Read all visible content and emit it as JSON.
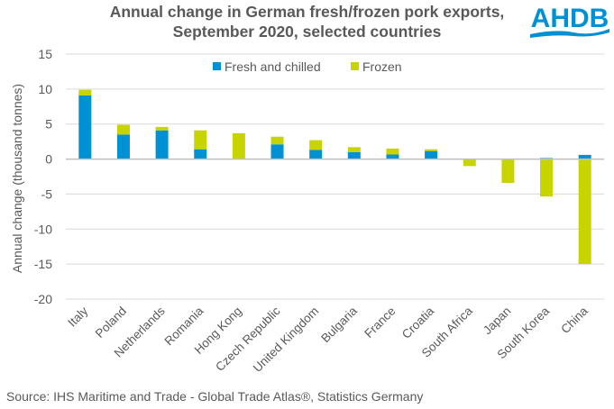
{
  "header": {
    "title_line1": "Annual change in German fresh/frozen pork exports,",
    "title_line2": "September 2020, selected countries",
    "logo_text": "AHDB"
  },
  "footer": {
    "source": "Source: IHS Maritime and Trade - Global Trade Atlas®, Statistics Germany"
  },
  "colors": {
    "fresh": "#0090D4",
    "frozen": "#C8D400",
    "text": "#595959",
    "grid": "#D9D9D9",
    "axis": "#BFBFBF",
    "logo": "#0090D4"
  },
  "chart_data": {
    "type": "bar",
    "stacked": true,
    "title": "Annual change in German fresh/frozen pork exports, September 2020, selected countries",
    "xlabel": "",
    "ylabel": "Annual change (thousand tonnes)",
    "ylim": [
      -20,
      15
    ],
    "yticks": [
      15,
      10,
      5,
      0,
      -5,
      -10,
      -15,
      -20
    ],
    "grid": true,
    "legend_position": "top-center",
    "categories": [
      "Italy",
      "Poland",
      "Netherlands",
      "Romania",
      "Hong Kong",
      "Czech Republic",
      "United Kingdom",
      "Bulgaria",
      "France",
      "Croatia",
      "South Africa",
      "Japan",
      "South Korea",
      "China"
    ],
    "series": [
      {
        "name": "Fresh and chilled",
        "values": [
          9.1,
          3.5,
          4.1,
          1.4,
          0.0,
          2.1,
          1.3,
          1.0,
          0.65,
          1.15,
          0.0,
          0.0,
          0.15,
          0.6
        ]
      },
      {
        "name": "Frozen",
        "values": [
          0.8,
          1.4,
          0.5,
          2.7,
          3.7,
          1.1,
          1.4,
          0.7,
          0.85,
          0.25,
          -1.0,
          -3.4,
          -5.35,
          -15.0
        ]
      }
    ]
  }
}
